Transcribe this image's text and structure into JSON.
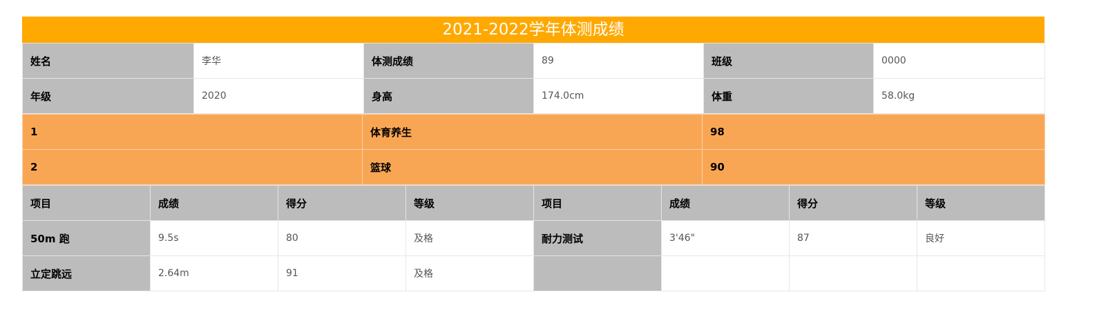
{
  "title": "2021-2022学年体测成绩",
  "info": {
    "name_label": "姓名",
    "name_value": "李华",
    "score_label": "体测成绩",
    "score_value": "89",
    "class_label": "班级",
    "class_value": "0000",
    "grade_label": "年级",
    "grade_value": "2020",
    "height_label": "身高",
    "height_value": "174.0cm",
    "weight_label": "体重",
    "weight_value": "58.0kg"
  },
  "elective": [
    {
      "no": "1",
      "course": "体育养生",
      "score": "98"
    },
    {
      "no": "2",
      "course": "篮球",
      "score": "90"
    }
  ],
  "scores": {
    "headers": [
      "项目",
      "成绩",
      "得分",
      "等级",
      "项目",
      "成绩",
      "得分",
      "等级"
    ],
    "rows": [
      [
        "50m 跑",
        "9.5s",
        "80",
        "及格",
        "耐力测试",
        "3'46\"",
        "87",
        "良好"
      ],
      [
        "立定跳远",
        "2.64m",
        "91",
        "及格",
        "",
        "",
        "",
        ""
      ]
    ]
  }
}
